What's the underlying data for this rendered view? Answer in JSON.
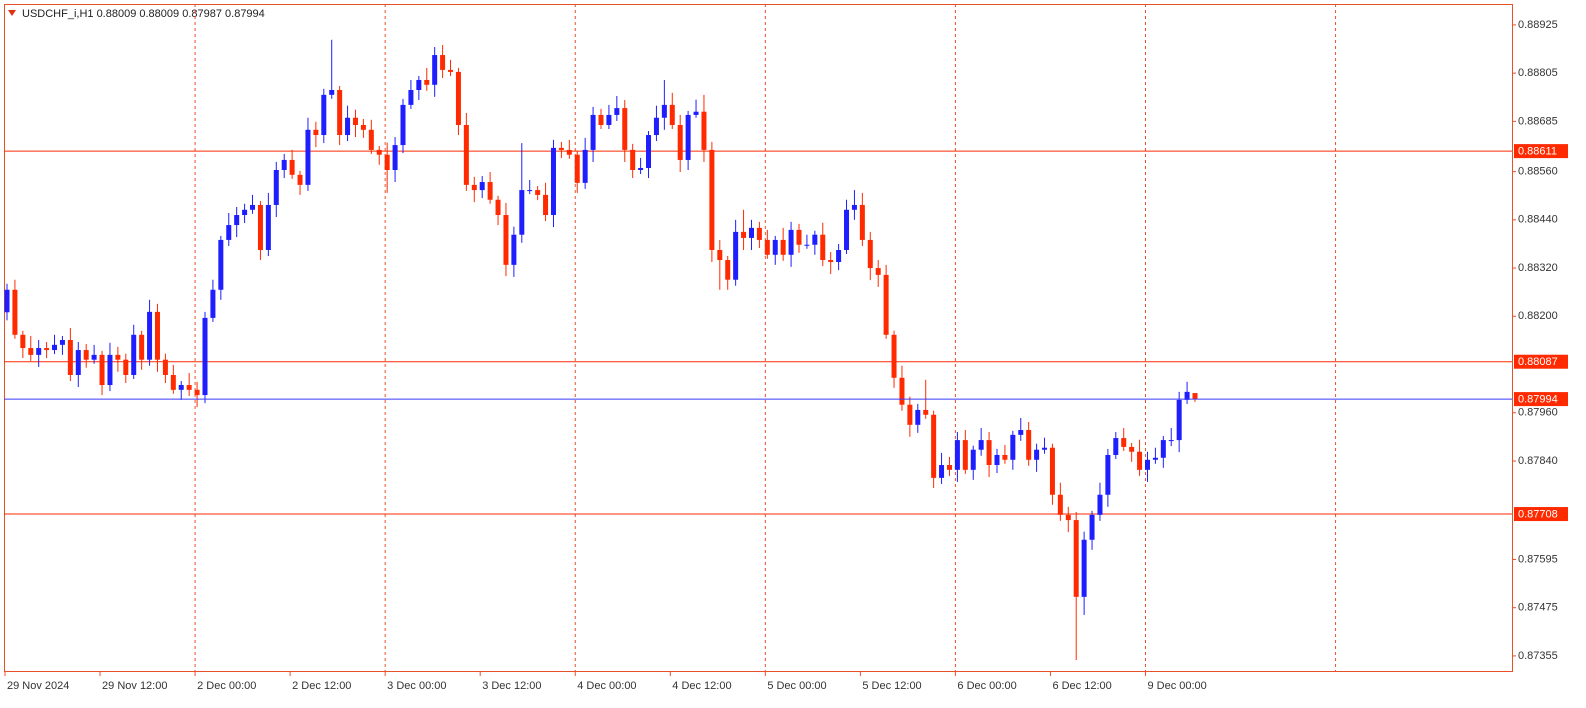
{
  "chart_data": {
    "type": "candlestick",
    "title": "USDCHF_i,H1  0.88009 0.88009 0.87987 0.87994",
    "categories": [
      "29 Nov 2024",
      null,
      null,
      null,
      null,
      null,
      null,
      null,
      null,
      null,
      null,
      null,
      "29 Nov 12:00",
      null,
      null,
      null,
      null,
      null,
      null,
      null,
      null,
      null,
      null,
      null,
      "2 Dec 00:00",
      null,
      null,
      null,
      null,
      null,
      null,
      null,
      null,
      null,
      null,
      null,
      "2 Dec 12:00",
      null,
      null,
      null,
      null,
      null,
      null,
      null,
      null,
      null,
      null,
      null,
      "3 Dec 00:00",
      null,
      null,
      null,
      null,
      null,
      null,
      null,
      null,
      null,
      null,
      null,
      "3 Dec 12:00",
      null,
      null,
      null,
      null,
      null,
      null,
      null,
      null,
      null,
      null,
      null,
      "4 Dec 00:00",
      null,
      null,
      null,
      null,
      null,
      null,
      null,
      null,
      null,
      null,
      null,
      "4 Dec 12:00",
      null,
      null,
      null,
      null,
      null,
      null,
      null,
      null,
      null,
      null,
      null,
      "5 Dec 00:00",
      null,
      null,
      null,
      null,
      null,
      null,
      null,
      null,
      null,
      null,
      null,
      "5 Dec 12:00",
      null,
      null,
      null,
      null,
      null,
      null,
      null,
      null,
      null,
      null,
      null,
      "6 Dec 00:00",
      null,
      null,
      null,
      null,
      null,
      null,
      null,
      null,
      null,
      null,
      null,
      "6 Dec 12:00",
      null,
      null,
      null,
      null,
      null,
      null,
      null,
      null,
      null,
      null,
      null,
      "9 Dec 00:00",
      null,
      null,
      null,
      null,
      null,
      null
    ],
    "open": [
      0.8821,
      0.88266,
      0.88154,
      0.88121,
      0.88104,
      0.88121,
      0.88116,
      0.88129,
      0.88141,
      0.88054,
      0.88116,
      0.88092,
      0.88104,
      0.88029,
      0.88104,
      0.88092,
      0.88054,
      0.88154,
      0.88092,
      0.88211,
      0.88092,
      0.88054,
      0.88017,
      0.88029,
      0.88017,
      0.88004,
      0.88196,
      0.88266,
      0.8839,
      0.88427,
      0.88452,
      0.88465,
      0.88477,
      0.88365,
      0.88477,
      0.88564,
      0.88589,
      0.88552,
      0.88527,
      0.88664,
      0.88651,
      0.88751,
      0.88763,
      0.88651,
      0.88694,
      0.88676,
      0.88664,
      0.88614,
      0.88602,
      0.88564,
      0.88626,
      0.88726,
      0.88763,
      0.88788,
      0.88776,
      0.8885,
      0.88813,
      0.88808,
      0.88676,
      0.88527,
      0.88514,
      0.88534,
      0.8849,
      0.88452,
      0.88328,
      0.88403,
      0.88514,
      0.88514,
      0.88502,
      0.88452,
      0.88619,
      0.88614,
      0.88602,
      0.88532,
      0.88614,
      0.88701,
      0.88676,
      0.88701,
      0.88718,
      0.88614,
      0.88564,
      0.88569,
      0.88651,
      0.88694,
      0.88726,
      0.88676,
      0.88589,
      0.88701,
      0.88709,
      0.88614,
      0.88365,
      0.8834,
      0.88291,
      0.8841,
      0.88395,
      0.8842,
      0.8839,
      0.88353,
      0.8839,
      0.88353,
      0.88415,
      0.88378,
      0.88378,
      0.88403,
      0.8834,
      0.88335,
      0.88365,
      0.88465,
      0.88477,
      0.8839,
      0.8832,
      0.88303,
      0.88154,
      0.88047,
      0.8798,
      0.8793,
      0.87967,
      0.87955,
      0.87798,
      0.8783,
      0.87818,
      0.87892,
      0.87818,
      0.87868,
      0.87892,
      0.8783,
      0.87855,
      0.87843,
      0.87905,
      0.87917,
      0.87843,
      0.87868,
      0.87873,
      0.87756,
      0.87706,
      0.87693,
      0.87502,
      0.87644,
      0.87706,
      0.87756,
      0.87855,
      0.87897,
      0.87875,
      0.87863,
      0.87818,
      0.87843,
      0.87848,
      0.87892,
      0.87892,
      0.87992,
      0.88009
    ],
    "high": [
      0.88281,
      0.88291,
      0.88164,
      0.88151,
      0.88141,
      0.88136,
      0.88154,
      0.88151,
      0.88171,
      0.88136,
      0.88131,
      0.88129,
      0.88114,
      0.88134,
      0.88124,
      0.88107,
      0.88179,
      0.88164,
      0.88241,
      0.88231,
      0.88107,
      0.88079,
      0.88039,
      0.88059,
      0.88037,
      0.88211,
      0.88291,
      0.884,
      0.88457,
      0.88472,
      0.8848,
      0.88502,
      0.88487,
      0.88507,
      0.88584,
      0.88604,
      0.88614,
      0.88562,
      0.88694,
      0.88684,
      0.88766,
      0.88888,
      0.88773,
      0.88724,
      0.88714,
      0.88691,
      0.88689,
      0.88624,
      0.88632,
      0.88646,
      0.88741,
      0.88788,
      0.88798,
      0.88818,
      0.8887,
      0.88875,
      0.88838,
      0.88818,
      0.88706,
      0.88547,
      0.88549,
      0.88559,
      0.885,
      0.88482,
      0.88423,
      0.88631,
      0.88539,
      0.88524,
      0.88532,
      0.88639,
      0.88634,
      0.88639,
      0.88612,
      0.88644,
      0.88721,
      0.88716,
      0.88726,
      0.88748,
      0.88738,
      0.88629,
      0.88594,
      0.88661,
      0.88724,
      0.88788,
      0.88756,
      0.88701,
      0.88711,
      0.88739,
      0.88751,
      0.88634,
      0.8839,
      0.8835,
      0.8844,
      0.88465,
      0.8844,
      0.88435,
      0.88415,
      0.884,
      0.8842,
      0.88435,
      0.8843,
      0.88403,
      0.88413,
      0.88433,
      0.8836,
      0.8838,
      0.8849,
      0.88514,
      0.88507,
      0.8841,
      0.8834,
      0.88328,
      0.88164,
      0.88077,
      0.88,
      0.87982,
      0.88042,
      0.87965,
      0.8786,
      0.8785,
      0.87912,
      0.87917,
      0.87878,
      0.87922,
      0.87912,
      0.8787,
      0.8788,
      0.87915,
      0.87947,
      0.87937,
      0.87883,
      0.87898,
      0.87883,
      0.87786,
      0.87726,
      0.87713,
      0.87664,
      0.87716,
      0.87786,
      0.8787,
      0.87912,
      0.87922,
      0.87885,
      0.87893,
      0.87863,
      0.87873,
      0.87902,
      0.87922,
      0.88012,
      0.88037,
      0.88009
    ],
    "low": [
      0.8819,
      0.88144,
      0.88096,
      0.88089,
      0.88074,
      0.88096,
      0.88106,
      0.88104,
      0.88039,
      0.88024,
      0.88072,
      0.88082,
      0.88004,
      0.88014,
      0.88062,
      0.88034,
      0.88044,
      0.88067,
      0.88077,
      0.88062,
      0.88034,
      0.88007,
      0.87992,
      0.88002,
      0.87974,
      0.87984,
      0.88186,
      0.88241,
      0.88375,
      0.88397,
      0.88432,
      0.88455,
      0.8834,
      0.8835,
      0.88447,
      0.88544,
      0.88542,
      0.88502,
      0.88512,
      0.88621,
      0.88631,
      0.88741,
      0.88626,
      0.88636,
      0.88646,
      0.88644,
      0.88604,
      0.88577,
      0.88507,
      0.88534,
      0.88606,
      0.88716,
      0.88738,
      0.88761,
      0.88746,
      0.88793,
      0.88798,
      0.88651,
      0.88512,
      0.88484,
      0.88494,
      0.8848,
      0.88427,
      0.883,
      0.88298,
      0.88383,
      0.88504,
      0.88489,
      0.88437,
      0.88422,
      0.88594,
      0.88592,
      0.88507,
      0.88517,
      0.88584,
      0.88666,
      0.88666,
      0.88686,
      0.88584,
      0.88544,
      0.88554,
      0.88544,
      0.88636,
      0.88664,
      0.88666,
      0.88559,
      0.88564,
      0.88694,
      0.88584,
      0.88335,
      0.88266,
      0.88266,
      0.88276,
      0.88365,
      0.88365,
      0.8837,
      0.88343,
      0.88328,
      0.88338,
      0.88323,
      0.88358,
      0.88368,
      0.88353,
      0.88325,
      0.88305,
      0.88315,
      0.88355,
      0.8844,
      0.88375,
      0.8829,
      0.88273,
      0.88144,
      0.88022,
      0.87965,
      0.879,
      0.8791,
      0.87945,
      0.87773,
      0.87783,
      0.87803,
      0.87788,
      0.87808,
      0.87793,
      0.87853,
      0.878,
      0.8781,
      0.87833,
      0.87818,
      0.8789,
      0.87828,
      0.87813,
      0.87858,
      0.87731,
      0.87691,
      0.87663,
      0.87345,
      0.87457,
      0.87619,
      0.87691,
      0.87726,
      0.87845,
      0.87865,
      0.87838,
      0.87803,
      0.87788,
      0.87833,
      0.87823,
      0.87877,
      0.87862,
      0.87982,
      0.87987
    ],
    "close": [
      0.88266,
      0.88154,
      0.88121,
      0.88104,
      0.88121,
      0.88116,
      0.88129,
      0.88141,
      0.88054,
      0.88116,
      0.88092,
      0.88104,
      0.88029,
      0.88104,
      0.88092,
      0.88054,
      0.88154,
      0.88092,
      0.88211,
      0.88092,
      0.88054,
      0.88017,
      0.88029,
      0.88017,
      0.88004,
      0.88196,
      0.88266,
      0.8839,
      0.88427,
      0.88452,
      0.88465,
      0.88477,
      0.88365,
      0.88477,
      0.88564,
      0.88589,
      0.88552,
      0.88527,
      0.88664,
      0.88651,
      0.88751,
      0.88763,
      0.88651,
      0.88694,
      0.88676,
      0.88664,
      0.88614,
      0.88602,
      0.88564,
      0.88626,
      0.88726,
      0.88763,
      0.88788,
      0.88776,
      0.8885,
      0.88813,
      0.88808,
      0.88676,
      0.88527,
      0.88514,
      0.88534,
      0.8849,
      0.88452,
      0.88328,
      0.88403,
      0.88514,
      0.88514,
      0.88502,
      0.88452,
      0.88619,
      0.88614,
      0.88602,
      0.88532,
      0.88614,
      0.88701,
      0.88676,
      0.88701,
      0.88718,
      0.88614,
      0.88564,
      0.88569,
      0.88651,
      0.88694,
      0.88726,
      0.88676,
      0.88589,
      0.88701,
      0.88709,
      0.88614,
      0.88365,
      0.8834,
      0.88291,
      0.8841,
      0.88395,
      0.8842,
      0.8839,
      0.88353,
      0.8839,
      0.88353,
      0.88415,
      0.88378,
      0.88378,
      0.88403,
      0.8834,
      0.88335,
      0.88365,
      0.88465,
      0.88477,
      0.8839,
      0.8832,
      0.88303,
      0.88154,
      0.88047,
      0.8798,
      0.8793,
      0.87967,
      0.87955,
      0.87798,
      0.8783,
      0.87818,
      0.87892,
      0.87818,
      0.87868,
      0.87892,
      0.8783,
      0.87855,
      0.87843,
      0.87905,
      0.87917,
      0.87843,
      0.87868,
      0.87873,
      0.87756,
      0.87706,
      0.87693,
      0.87502,
      0.87644,
      0.87706,
      0.87756,
      0.87855,
      0.87897,
      0.87875,
      0.87863,
      0.87818,
      0.87843,
      0.87848,
      0.87892,
      0.87892,
      0.87992,
      0.88012,
      0.87994
    ],
    "up_color": "#1e1eff",
    "down_color": "#ff2a00",
    "ylim": [
      0.87315,
      0.88977
    ],
    "yticks": [
      0.88925,
      0.88805,
      0.88685,
      {
        "value": 0.8856,
        "label": "0.88560"
      },
      {
        "value": 0.8844,
        "label": "0.88440"
      },
      {
        "value": 0.8832,
        "label": "0.88320"
      },
      {
        "value": 0.882,
        "label": "0.88200"
      },
      {
        "value": 0.8796,
        "label": "0.87960"
      },
      {
        "value": 0.8784,
        "label": "0.87840"
      },
      0.87595,
      0.87475,
      0.87355
    ],
    "levels": [
      {
        "value": 0.88611,
        "color": "#ff2a00"
      },
      {
        "value": 0.88087,
        "color": "#ff2a00"
      },
      {
        "value": 0.87708,
        "color": "#ff2a00"
      }
    ],
    "bid": {
      "value": 0.87994,
      "color": "#3a3aff",
      "label_color": "#ff2a00"
    }
  }
}
